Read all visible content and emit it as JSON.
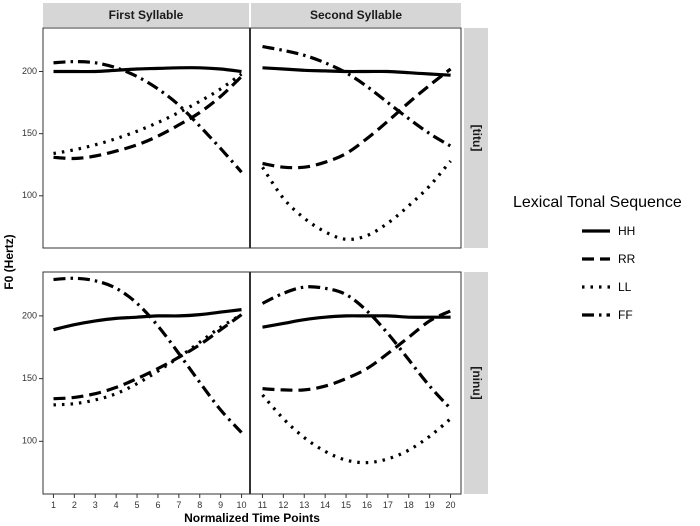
{
  "chart_data": {
    "type": "line",
    "xlabel": "Normalized Time Points",
    "ylabel": "F0 (Hertz)",
    "x": [
      1,
      2,
      3,
      4,
      5,
      6,
      7,
      8,
      9,
      10,
      11,
      12,
      13,
      14,
      15,
      16,
      17,
      18,
      19,
      20
    ],
    "xlim": [
      0.5,
      20.5
    ],
    "ylim": [
      58,
      235
    ],
    "yticks": [
      100,
      150,
      200
    ],
    "columns": [
      "First Syllable",
      "Second Syllable"
    ],
    "rows": [
      "[titu]",
      "[ninu]"
    ],
    "legend": {
      "title": "Lexical Tonal Sequence",
      "entries": [
        {
          "name": "HH",
          "dash": "solid"
        },
        {
          "name": "RR",
          "dash": "long-dash"
        },
        {
          "name": "LL",
          "dash": "dotted"
        },
        {
          "name": "FF",
          "dash": "dot-dash"
        }
      ]
    },
    "panels": [
      {
        "row": "[titu]",
        "series": [
          {
            "name": "HH",
            "values": [
              200,
              200,
              200,
              201,
              202,
              202.5,
              203,
              203,
              202,
              200,
              203,
              202,
              201,
              200.5,
              200,
              200,
              200,
              199,
              198,
              197
            ]
          },
          {
            "name": "RR",
            "values": [
              131,
              130,
              132,
              136,
              141,
              148,
              157,
              167,
              180,
              196,
              126,
              123,
              123,
              127,
              134,
              146,
              160,
              175,
              189,
              202
            ]
          },
          {
            "name": "LL",
            "values": [
              134,
              137,
              141,
              146,
              152,
              159,
              167,
              176,
              186,
              198,
              123,
              98,
              82,
              71,
              65,
              68,
              78,
              92,
              108,
              128
            ]
          },
          {
            "name": "FF",
            "values": [
              207,
              208,
              207,
              203,
              196,
              186,
              173,
              156,
              138,
              119,
              220,
              217,
              213,
              207,
              199,
              188,
              175,
              162,
              150,
              140
            ]
          }
        ]
      },
      {
        "row": "[ninu]",
        "series": [
          {
            "name": "HH",
            "values": [
              189,
              193,
              196,
              198,
              199,
              200,
              200,
              201,
              203,
              205,
              191,
              194,
              197,
              199,
              200,
              200,
              200,
              199,
              199,
              199
            ]
          },
          {
            "name": "RR",
            "values": [
              134,
              135,
              138,
              143,
              150,
              158,
              167,
              177,
              189,
              201,
              142,
              141,
              141,
              144,
              150,
              158,
              170,
              183,
              196,
              204
            ]
          },
          {
            "name": "LL",
            "values": [
              129,
              130,
              133,
              138,
              146,
              156,
              167,
              179,
              191,
              201,
              137,
              118,
              103,
              92,
              85,
              83,
              86,
              93,
              104,
              118
            ]
          },
          {
            "name": "FF",
            "values": [
              229,
              230,
              228,
              222,
              210,
              192,
              170,
              147,
              125,
              107,
              210,
              218,
              223,
              222,
              217,
              204,
              186,
              165,
              144,
              126
            ]
          }
        ]
      }
    ]
  }
}
